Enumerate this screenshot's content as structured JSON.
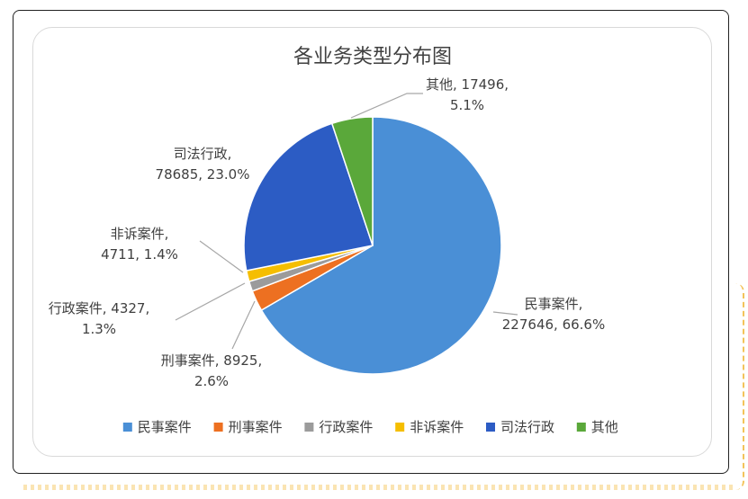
{
  "chart_data": {
    "type": "pie",
    "title": "各业务类型分布图",
    "series": [
      {
        "name": "民事案件",
        "value": 227646,
        "percent": "66.6%",
        "color": "#4a8fd6",
        "label_lines": [
          "民事案件,",
          "227646, 66.6%"
        ]
      },
      {
        "name": "刑事案件",
        "value": 8925,
        "percent": "2.6%",
        "color": "#ed7021",
        "label_lines": [
          "刑事案件, 8925,",
          "2.6%"
        ]
      },
      {
        "name": "行政案件",
        "value": 4327,
        "percent": "1.3%",
        "color": "#9b9b9b",
        "label_lines": [
          "行政案件, 4327,",
          "1.3%"
        ]
      },
      {
        "name": "非诉案件",
        "value": 4711,
        "percent": "1.4%",
        "color": "#f5be00",
        "label_lines": [
          "非诉案件,",
          "4711, 1.4%"
        ]
      },
      {
        "name": "司法行政",
        "value": 78685,
        "percent": "23.0%",
        "color": "#2c5cc4",
        "label_lines": [
          "司法行政,",
          "78685, 23.0%"
        ]
      },
      {
        "name": "其他",
        "value": 17496,
        "percent": "5.1%",
        "color": "#5aa83a",
        "label_lines": [
          "其他, 17496,",
          "5.1%"
        ]
      }
    ],
    "legend_position": "bottom"
  }
}
